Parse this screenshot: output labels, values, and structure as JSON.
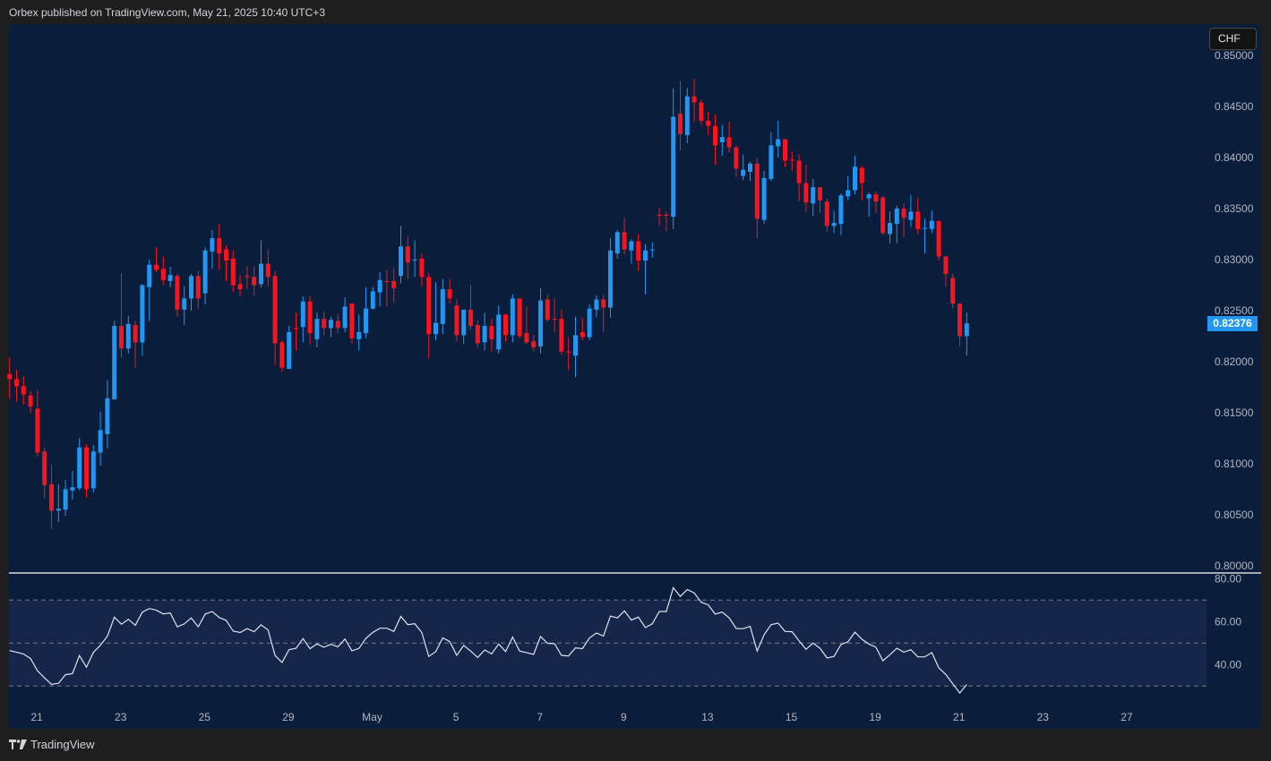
{
  "header": {
    "published": "Orbex published on TradingView.com, May 21, 2025 10:40 UTC+3"
  },
  "currency_badge": "CHF",
  "footer": {
    "brand": "TradingView",
    "logo_icon": "tradingview-logo-icon"
  },
  "colors": {
    "bull": "#2196f3",
    "bear": "#f7141e",
    "background": "#0a1e3c",
    "rsi_band": "#16254a",
    "rsi_line": "#e0e3eb"
  },
  "chart_data": [
    {
      "type": "candlestick",
      "title": "",
      "last_price": "0.82376",
      "ylim": [
        0.8,
        0.85
      ],
      "y_ticks": [
        "0.85000",
        "0.84500",
        "0.84000",
        "0.83500",
        "0.83000",
        "0.82500",
        "0.82000",
        "0.81500",
        "0.81000",
        "0.80500",
        "0.80000"
      ],
      "x_ticks": [
        "21",
        "23",
        "25",
        "29",
        "May",
        "5",
        "7",
        "9",
        "13",
        "15",
        "19",
        "21",
        "23",
        "27",
        "29"
      ],
      "ohlc": [
        [
          0.8188,
          0.8204,
          0.8164,
          0.8183
        ],
        [
          0.8183,
          0.8192,
          0.8161,
          0.8176
        ],
        [
          0.8176,
          0.8186,
          0.8158,
          0.8168
        ],
        [
          0.8167,
          0.8171,
          0.815,
          0.8156
        ],
        [
          0.8154,
          0.8172,
          0.8107,
          0.8111
        ],
        [
          0.8112,
          0.8116,
          0.8066,
          0.8079
        ],
        [
          0.808,
          0.8099,
          0.8036,
          0.8054
        ],
        [
          0.8054,
          0.808,
          0.8043,
          0.8056
        ],
        [
          0.8055,
          0.8084,
          0.8049,
          0.8075
        ],
        [
          0.8074,
          0.8093,
          0.8065,
          0.8077
        ],
        [
          0.8076,
          0.8125,
          0.8074,
          0.8116
        ],
        [
          0.8116,
          0.8119,
          0.8067,
          0.8075
        ],
        [
          0.8076,
          0.8118,
          0.8072,
          0.8112
        ],
        [
          0.8111,
          0.8151,
          0.8098,
          0.8133
        ],
        [
          0.8129,
          0.8182,
          0.8115,
          0.8164
        ],
        [
          0.8163,
          0.824,
          0.8163,
          0.8235
        ],
        [
          0.8235,
          0.8287,
          0.8204,
          0.8213
        ],
        [
          0.8213,
          0.8245,
          0.8208,
          0.8237
        ],
        [
          0.8236,
          0.824,
          0.8194,
          0.8219
        ],
        [
          0.8219,
          0.8276,
          0.8206,
          0.8275
        ],
        [
          0.8273,
          0.83,
          0.824,
          0.8295
        ],
        [
          0.8295,
          0.8312,
          0.8288,
          0.829
        ],
        [
          0.8291,
          0.8303,
          0.8275,
          0.828
        ],
        [
          0.8279,
          0.8293,
          0.8273,
          0.8285
        ],
        [
          0.8284,
          0.8286,
          0.8244,
          0.8251
        ],
        [
          0.8251,
          0.8274,
          0.8236,
          0.8262
        ],
        [
          0.8262,
          0.8286,
          0.825,
          0.8284
        ],
        [
          0.8284,
          0.8289,
          0.8252,
          0.8262
        ],
        [
          0.8267,
          0.8312,
          0.8256,
          0.8309
        ],
        [
          0.8308,
          0.8329,
          0.8291,
          0.8321
        ],
        [
          0.8321,
          0.8335,
          0.829,
          0.8306
        ],
        [
          0.831,
          0.8314,
          0.8279,
          0.8299
        ],
        [
          0.8301,
          0.8309,
          0.8268,
          0.8275
        ],
        [
          0.8276,
          0.8285,
          0.8264,
          0.8271
        ],
        [
          0.8284,
          0.8293,
          0.8271,
          0.8283
        ],
        [
          0.8283,
          0.8293,
          0.8265,
          0.8275
        ],
        [
          0.8276,
          0.8319,
          0.8273,
          0.8296
        ],
        [
          0.8296,
          0.831,
          0.8274,
          0.8283
        ],
        [
          0.8284,
          0.8289,
          0.8197,
          0.8218
        ],
        [
          0.8219,
          0.8221,
          0.819,
          0.8194
        ],
        [
          0.8193,
          0.8235,
          0.8193,
          0.8229
        ],
        [
          0.8233,
          0.8248,
          0.8211,
          0.8232
        ],
        [
          0.8234,
          0.8264,
          0.8219,
          0.8259
        ],
        [
          0.8259,
          0.8264,
          0.8217,
          0.8228
        ],
        [
          0.8222,
          0.8248,
          0.8214,
          0.8242
        ],
        [
          0.8242,
          0.8249,
          0.8225,
          0.8233
        ],
        [
          0.8233,
          0.8244,
          0.8224,
          0.8241
        ],
        [
          0.824,
          0.8247,
          0.8228,
          0.8233
        ],
        [
          0.8233,
          0.8263,
          0.8229,
          0.8254
        ],
        [
          0.8257,
          0.8257,
          0.8218,
          0.8223
        ],
        [
          0.8222,
          0.8246,
          0.8211,
          0.8229
        ],
        [
          0.8228,
          0.8273,
          0.8223,
          0.8252
        ],
        [
          0.8252,
          0.8273,
          0.8251,
          0.8269
        ],
        [
          0.8268,
          0.8288,
          0.8254,
          0.828
        ],
        [
          0.8279,
          0.829,
          0.8254,
          0.8278
        ],
        [
          0.8279,
          0.8292,
          0.8258,
          0.8272
        ],
        [
          0.8284,
          0.8333,
          0.8277,
          0.8313
        ],
        [
          0.8313,
          0.8323,
          0.8281,
          0.8297
        ],
        [
          0.83,
          0.8319,
          0.8283,
          0.83
        ],
        [
          0.8301,
          0.8306,
          0.8274,
          0.8283
        ],
        [
          0.8283,
          0.8287,
          0.8203,
          0.8227
        ],
        [
          0.8227,
          0.8278,
          0.8221,
          0.8238
        ],
        [
          0.8237,
          0.8281,
          0.8227,
          0.8271
        ],
        [
          0.8271,
          0.8281,
          0.8257,
          0.8262
        ],
        [
          0.8255,
          0.8261,
          0.822,
          0.8226
        ],
        [
          0.8226,
          0.8251,
          0.8217,
          0.8251
        ],
        [
          0.8251,
          0.8275,
          0.8231,
          0.8235
        ],
        [
          0.8236,
          0.8241,
          0.8214,
          0.8218
        ],
        [
          0.8219,
          0.8248,
          0.8211,
          0.8235
        ],
        [
          0.8235,
          0.8242,
          0.821,
          0.8222
        ],
        [
          0.8212,
          0.8255,
          0.8208,
          0.8246
        ],
        [
          0.8246,
          0.8247,
          0.822,
          0.8226
        ],
        [
          0.8226,
          0.8266,
          0.8219,
          0.8262
        ],
        [
          0.8262,
          0.8262,
          0.8223,
          0.8225
        ],
        [
          0.8228,
          0.8254,
          0.8217,
          0.8219
        ],
        [
          0.822,
          0.8226,
          0.821,
          0.8214
        ],
        [
          0.8215,
          0.8272,
          0.8208,
          0.826
        ],
        [
          0.8261,
          0.8266,
          0.8239,
          0.8241
        ],
        [
          0.8242,
          0.8262,
          0.8229,
          0.8241
        ],
        [
          0.8242,
          0.8251,
          0.8207,
          0.821
        ],
        [
          0.821,
          0.8224,
          0.8192,
          0.8209
        ],
        [
          0.8206,
          0.8244,
          0.8185,
          0.8226
        ],
        [
          0.8229,
          0.8243,
          0.8221,
          0.8224
        ],
        [
          0.8224,
          0.8256,
          0.8221,
          0.8252
        ],
        [
          0.8251,
          0.8265,
          0.8244,
          0.8261
        ],
        [
          0.8261,
          0.8266,
          0.8229,
          0.8253
        ],
        [
          0.8253,
          0.8321,
          0.8243,
          0.8309
        ],
        [
          0.8306,
          0.8329,
          0.8301,
          0.8327
        ],
        [
          0.8327,
          0.8341,
          0.8305,
          0.831
        ],
        [
          0.8309,
          0.832,
          0.8296,
          0.8318
        ],
        [
          0.8318,
          0.8325,
          0.8289,
          0.8299
        ],
        [
          0.8299,
          0.8315,
          0.8266,
          0.8309
        ],
        [
          0.831,
          0.8317,
          0.8302,
          0.831
        ],
        [
          0.8344,
          0.8351,
          0.8333,
          0.8343
        ],
        [
          0.8344,
          0.8347,
          0.8328,
          0.8343
        ],
        [
          0.8342,
          0.8468,
          0.833,
          0.844
        ],
        [
          0.8443,
          0.8475,
          0.8407,
          0.8423
        ],
        [
          0.8422,
          0.8468,
          0.8414,
          0.846
        ],
        [
          0.846,
          0.8477,
          0.8435,
          0.8454
        ],
        [
          0.8454,
          0.8457,
          0.8432,
          0.8436
        ],
        [
          0.8436,
          0.8445,
          0.8422,
          0.8431
        ],
        [
          0.8431,
          0.8442,
          0.8393,
          0.8412
        ],
        [
          0.8415,
          0.8432,
          0.8402,
          0.842
        ],
        [
          0.842,
          0.8435,
          0.8405,
          0.841
        ],
        [
          0.841,
          0.8412,
          0.8381,
          0.8389
        ],
        [
          0.8382,
          0.8403,
          0.8378,
          0.8388
        ],
        [
          0.8386,
          0.8396,
          0.8377,
          0.8394
        ],
        [
          0.8394,
          0.84,
          0.8321,
          0.834
        ],
        [
          0.8339,
          0.8387,
          0.8335,
          0.838
        ],
        [
          0.8379,
          0.8425,
          0.8377,
          0.8412
        ],
        [
          0.8411,
          0.8436,
          0.84,
          0.8418
        ],
        [
          0.8418,
          0.8418,
          0.8391,
          0.8397
        ],
        [
          0.8398,
          0.8406,
          0.8387,
          0.8397
        ],
        [
          0.8397,
          0.8403,
          0.8357,
          0.8375
        ],
        [
          0.8375,
          0.8393,
          0.8347,
          0.8356
        ],
        [
          0.8355,
          0.8379,
          0.8343,
          0.8371
        ],
        [
          0.8371,
          0.8371,
          0.8346,
          0.8358
        ],
        [
          0.8357,
          0.836,
          0.8327,
          0.8333
        ],
        [
          0.8333,
          0.8348,
          0.8326,
          0.8336
        ],
        [
          0.8335,
          0.8365,
          0.8324,
          0.8363
        ],
        [
          0.8362,
          0.8382,
          0.8358,
          0.8368
        ],
        [
          0.8368,
          0.8402,
          0.8364,
          0.8391
        ],
        [
          0.839,
          0.8392,
          0.8358,
          0.8375
        ],
        [
          0.836,
          0.8366,
          0.8342,
          0.8364
        ],
        [
          0.8364,
          0.8367,
          0.8346,
          0.8357
        ],
        [
          0.8361,
          0.8362,
          0.8324,
          0.8326
        ],
        [
          0.8325,
          0.8347,
          0.8316,
          0.8336
        ],
        [
          0.8335,
          0.8353,
          0.8316,
          0.835
        ],
        [
          0.835,
          0.8355,
          0.8322,
          0.8341
        ],
        [
          0.8339,
          0.8363,
          0.8332,
          0.8347
        ],
        [
          0.8347,
          0.8361,
          0.8325,
          0.833
        ],
        [
          0.8331,
          0.834,
          0.8306,
          0.8331
        ],
        [
          0.833,
          0.8348,
          0.8326,
          0.8338
        ],
        [
          0.8338,
          0.8338,
          0.8299,
          0.8303
        ],
        [
          0.8303,
          0.8304,
          0.8274,
          0.8286
        ],
        [
          0.8282,
          0.8286,
          0.8252,
          0.8257
        ],
        [
          0.8257,
          0.8257,
          0.8215,
          0.8225
        ],
        [
          0.8225,
          0.8248,
          0.8206,
          0.82376
        ]
      ]
    },
    {
      "type": "line",
      "title": "",
      "ylim": [
        20,
        80
      ],
      "y_ticks": [
        "80.00",
        "60.00",
        "40.00"
      ],
      "bands": [
        70,
        50,
        30
      ],
      "values": [
        46.5,
        45.8,
        44.9,
        42.8,
        37.1,
        33.8,
        30.8,
        31.3,
        35.3,
        35.8,
        44.2,
        38.8,
        45.7,
        49.0,
        53.2,
        62.1,
        58.8,
        61.1,
        58.3,
        64.4,
        66.1,
        65.3,
        63.6,
        64.0,
        57.6,
        58.9,
        61.7,
        57.6,
        63.5,
        64.7,
        61.9,
        60.6,
        55.6,
        54.9,
        56.7,
        55.3,
        58.5,
        56.1,
        44.2,
        41.0,
        46.9,
        47.6,
        52.1,
        47.4,
        49.6,
        48.1,
        49.4,
        48.3,
        51.9,
        46.4,
        47.5,
        52.2,
        55.0,
        56.9,
        56.9,
        55.4,
        62.4,
        58.6,
        59.0,
        54.9,
        43.8,
        46.0,
        52.4,
        50.7,
        44.3,
        48.9,
        46.3,
        43.3,
        46.8,
        45.0,
        49.6,
        46.1,
        52.8,
        46.3,
        45.6,
        44.7,
        53.1,
        49.9,
        49.7,
        44.3,
        44.0,
        47.8,
        47.4,
        52.4,
        54.7,
        53.3,
        62.6,
        61.7,
        65.0,
        60.7,
        62.1,
        57.2,
        59.0,
        64.7,
        64.7,
        75.8,
        71.7,
        74.9,
        73.3,
        69.0,
        67.8,
        63.5,
        64.4,
        61.7,
        56.8,
        56.7,
        57.8,
        46.3,
        53.9,
        58.6,
        59.3,
        55.4,
        55.3,
        51.1,
        47.1,
        50.0,
        47.6,
        43.1,
        43.8,
        49.3,
        50.6,
        55.1,
        51.8,
        49.6,
        48.1,
        41.8,
        44.6,
        47.6,
        45.8,
        46.9,
        43.6,
        43.6,
        45.6,
        38.5,
        35.4,
        31.1,
        26.8,
        30.7
      ]
    }
  ]
}
